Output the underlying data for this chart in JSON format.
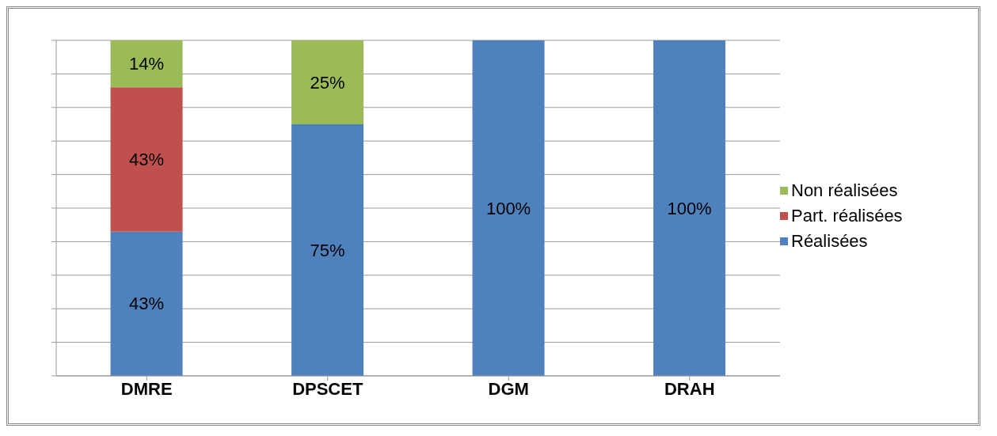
{
  "chart_data": {
    "type": "bar",
    "stacked": true,
    "categories": [
      "DMRE",
      "DPSCET",
      "DGM",
      "DRAH"
    ],
    "series": [
      {
        "name": "Réalisées",
        "color": "#4f81bd",
        "values": [
          43,
          75,
          100,
          100
        ],
        "value_labels": [
          "43%",
          "75%",
          "100%",
          "100%"
        ]
      },
      {
        "name": "Part. réalisées",
        "color": "#c0504d",
        "values": [
          43,
          null,
          null,
          null
        ],
        "value_labels": [
          "43%",
          null,
          null,
          null
        ]
      },
      {
        "name": "Non réalisées",
        "color": "#9bbb59",
        "values": [
          14,
          25,
          null,
          null
        ],
        "value_labels": [
          "14%",
          "25%",
          null,
          null
        ]
      }
    ],
    "ylim": [
      0,
      100
    ],
    "yticks": [
      {
        "value": 0,
        "label": null
      },
      {
        "value": 10,
        "label": null
      },
      {
        "value": 20,
        "label": null
      },
      {
        "value": 30,
        "label": null
      },
      {
        "value": 40,
        "label": null
      },
      {
        "value": 50,
        "label": null
      },
      {
        "value": 60,
        "label": null
      },
      {
        "value": 70,
        "label": null
      },
      {
        "value": 80,
        "label": null
      },
      {
        "value": 90,
        "label": null
      },
      {
        "value": 100,
        "label": null
      }
    ],
    "tick_labels": "x",
    "grid": "y",
    "legend": "right"
  }
}
